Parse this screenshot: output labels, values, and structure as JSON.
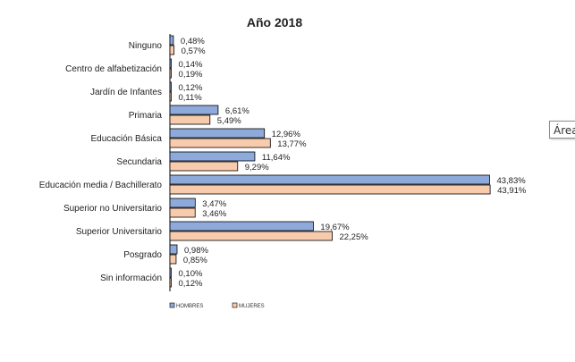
{
  "chart_data": {
    "type": "bar",
    "orientation": "horizontal",
    "title": "Año 2018",
    "categories": [
      "Ninguno",
      "Centro de alfabetización",
      "Jardín de Infantes",
      "Primaria",
      "Educación Básica",
      "Secundaria",
      "Educación media / Bachillerato",
      "Superior no Universitario",
      "Superior Universitario",
      "Posgrado",
      "Sin información"
    ],
    "series": [
      {
        "name": "HOMBRES",
        "color": "#8eaadb",
        "values": [
          0.48,
          0.14,
          0.12,
          6.61,
          12.96,
          11.64,
          43.83,
          3.47,
          19.67,
          0.98,
          0.1
        ],
        "labels": [
          "0,48%",
          "0,14%",
          "0,12%",
          "6,61%",
          "12,96%",
          "11,64%",
          "43,83%",
          "3,47%",
          "19,67%",
          "0,98%",
          "0,10%"
        ]
      },
      {
        "name": "MUJERES",
        "color": "#f8cbad",
        "values": [
          0.57,
          0.19,
          0.11,
          5.49,
          13.77,
          9.29,
          43.91,
          3.46,
          22.25,
          0.85,
          0.12
        ],
        "labels": [
          "0,57%",
          "0,19%",
          "0,11%",
          "5,49%",
          "13,77%",
          "9,29%",
          "43,91%",
          "3,46%",
          "22,25%",
          "0,85%",
          "0,12%"
        ]
      }
    ],
    "xlim": [
      0,
      45
    ],
    "grid": false,
    "legend": "bottom-left"
  },
  "tooltip": {
    "text": "Área"
  }
}
